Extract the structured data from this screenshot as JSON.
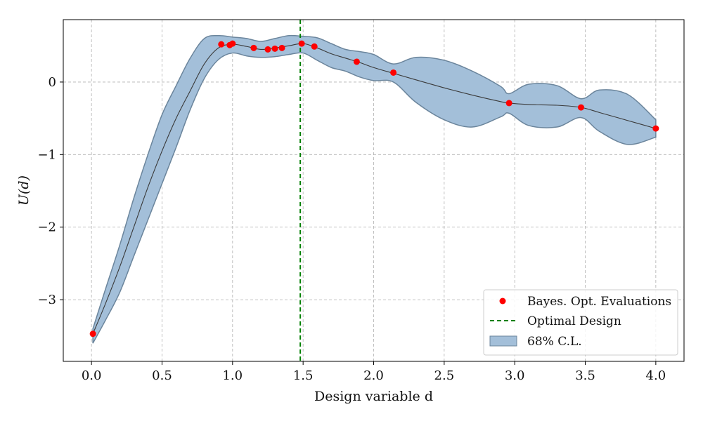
{
  "chart_data": {
    "type": "line",
    "xlabel": "Design variable d",
    "ylabel": "U(d)",
    "xlim": [
      -0.2,
      4.2
    ],
    "ylim": [
      -3.85,
      0.86
    ],
    "xticks": [
      0.0,
      0.5,
      1.0,
      1.5,
      2.0,
      2.5,
      3.0,
      3.5,
      4.0
    ],
    "xtick_labels": [
      "0.0",
      "0.5",
      "1.0",
      "1.5",
      "2.0",
      "2.5",
      "3.0",
      "3.5",
      "4.0"
    ],
    "yticks": [
      0,
      -1,
      -2,
      -3
    ],
    "ytick_labels": [
      "0",
      "−1",
      "−2",
      "−3"
    ],
    "grid": true,
    "legend_position": "bottom-right",
    "legend": {
      "evaluations": "Bayes. Opt. Evaluations",
      "optimal": "Optimal Design",
      "band": "68% C.L."
    },
    "colors": {
      "mean": "#3a3a3a",
      "band_fill": "#a3bfd9",
      "band_edge": "#6b859c",
      "points": "#ff0000",
      "optimal": "#008000",
      "grid": "#b0b0b0"
    },
    "optimal_design": 1.48,
    "mean_curve": {
      "x": [
        0.01,
        0.1,
        0.2,
        0.3,
        0.4,
        0.5,
        0.6,
        0.7,
        0.8,
        0.9,
        1.0,
        1.1,
        1.2,
        1.3,
        1.4,
        1.5,
        1.6,
        1.7,
        1.8,
        1.9,
        2.0,
        2.14,
        2.3,
        2.5,
        2.7,
        2.9,
        2.96,
        3.1,
        3.3,
        3.47,
        3.6,
        3.8,
        4.0
      ],
      "y": [
        -3.47,
        -3.05,
        -2.55,
        -2.0,
        -1.45,
        -0.95,
        -0.5,
        -0.12,
        0.25,
        0.47,
        0.52,
        0.49,
        0.45,
        0.47,
        0.5,
        0.53,
        0.47,
        0.39,
        0.33,
        0.27,
        0.2,
        0.12,
        0.03,
        -0.08,
        -0.18,
        -0.27,
        -0.29,
        -0.31,
        -0.32,
        -0.35,
        -0.42,
        -0.53,
        -0.64
      ]
    },
    "band_upper": [
      -3.4,
      -2.85,
      -2.25,
      -1.6,
      -1.0,
      -0.45,
      -0.05,
      0.33,
      0.6,
      0.64,
      0.62,
      0.6,
      0.56,
      0.6,
      0.64,
      0.63,
      0.61,
      0.53,
      0.45,
      0.42,
      0.38,
      0.25,
      0.34,
      0.3,
      0.15,
      -0.06,
      -0.16,
      -0.03,
      -0.05,
      -0.23,
      -0.11,
      -0.17,
      -0.52
    ],
    "band_lower": [
      -3.6,
      -3.28,
      -2.9,
      -2.4,
      -1.9,
      -1.4,
      -0.9,
      -0.38,
      0.05,
      0.31,
      0.4,
      0.36,
      0.34,
      0.35,
      0.38,
      0.4,
      0.3,
      0.2,
      0.15,
      0.07,
      0.02,
      0.0,
      -0.28,
      -0.52,
      -0.62,
      -0.48,
      -0.43,
      -0.6,
      -0.62,
      -0.49,
      -0.68,
      -0.86,
      -0.76
    ],
    "evaluations": {
      "x": [
        0.01,
        0.92,
        0.98,
        1.0,
        1.15,
        1.25,
        1.3,
        1.35,
        1.49,
        1.58,
        1.88,
        2.14,
        2.96,
        3.47,
        4.0
      ],
      "y": [
        -3.47,
        0.52,
        0.51,
        0.53,
        0.47,
        0.45,
        0.46,
        0.47,
        0.53,
        0.49,
        0.28,
        0.13,
        -0.29,
        -0.35,
        -0.64
      ]
    }
  }
}
